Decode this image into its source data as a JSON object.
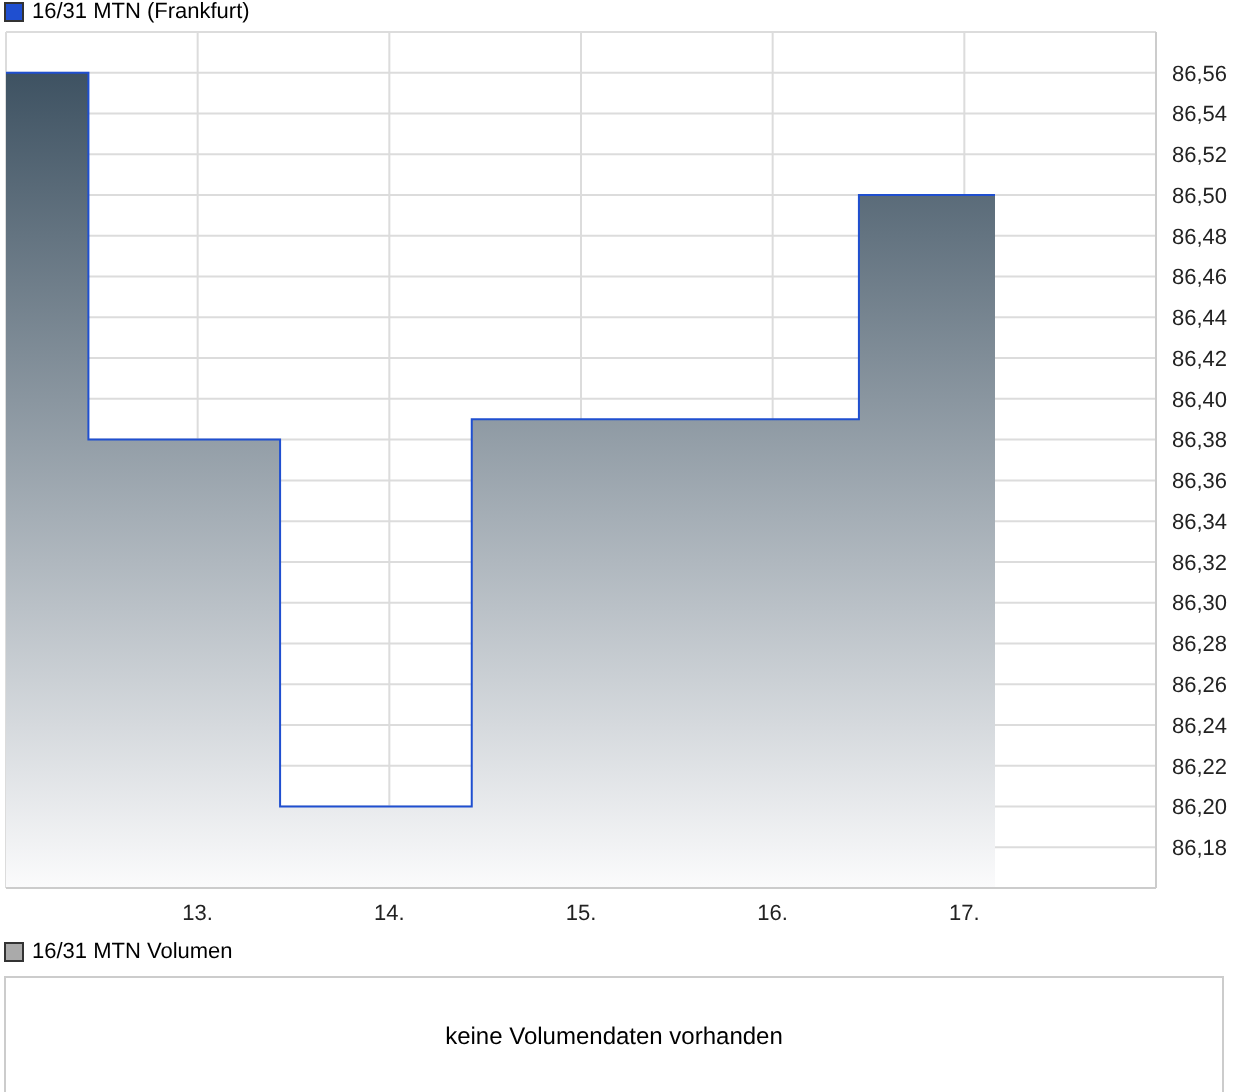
{
  "chart_data": [
    {
      "type": "area",
      "legend": "top left",
      "grid": true,
      "x": [
        12.0,
        12.43,
        12.43,
        13.43,
        13.43,
        14.43,
        14.43,
        16.45,
        16.45,
        17.16
      ],
      "series": [
        {
          "name": "16/31 MTN (Frankfurt)",
          "color": "#1f4fd0",
          "values": [
            86.56,
            86.56,
            86.38,
            86.38,
            86.2,
            86.2,
            86.39,
            86.39,
            86.5,
            86.5
          ]
        }
      ],
      "xlim": [
        12.0,
        18.0
      ],
      "xticks": [
        {
          "value": 13,
          "label": "13."
        },
        {
          "value": 14,
          "label": "14."
        },
        {
          "value": 15,
          "label": "15."
        },
        {
          "value": 16,
          "label": "16."
        },
        {
          "value": 17,
          "label": "17."
        }
      ],
      "ylim": [
        86.16,
        86.58
      ],
      "yticks": [
        {
          "value": 86.18,
          "label": "86,18"
        },
        {
          "value": 86.2,
          "label": "86,20"
        },
        {
          "value": 86.22,
          "label": "86,22"
        },
        {
          "value": 86.24,
          "label": "86,24"
        },
        {
          "value": 86.26,
          "label": "86,26"
        },
        {
          "value": 86.28,
          "label": "86,28"
        },
        {
          "value": 86.3,
          "label": "86,30"
        },
        {
          "value": 86.32,
          "label": "86,32"
        },
        {
          "value": 86.34,
          "label": "86,34"
        },
        {
          "value": 86.36,
          "label": "86,36"
        },
        {
          "value": 86.38,
          "label": "86,38"
        },
        {
          "value": 86.4,
          "label": "86,40"
        },
        {
          "value": 86.42,
          "label": "86,42"
        },
        {
          "value": 86.44,
          "label": "86,44"
        },
        {
          "value": 86.46,
          "label": "86,46"
        },
        {
          "value": 86.48,
          "label": "86,48"
        },
        {
          "value": 86.5,
          "label": "86,50"
        },
        {
          "value": 86.52,
          "label": "86,52"
        },
        {
          "value": 86.54,
          "label": "86,54"
        },
        {
          "value": 86.56,
          "label": "86,56"
        }
      ]
    },
    {
      "type": "other",
      "title": "16/31 MTN Volumen",
      "annotations": [
        "keine Volumendaten vorhanden"
      ]
    }
  ]
}
